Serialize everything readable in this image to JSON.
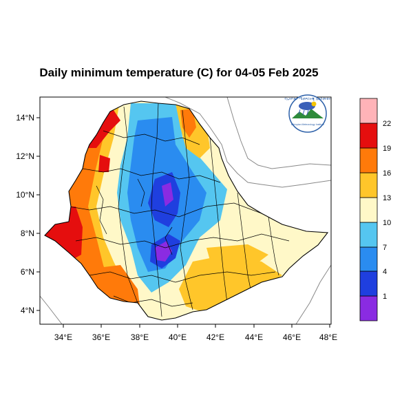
{
  "title": "Daily minimum temperature (C) for 04-05 Feb 2025",
  "map": {
    "x_ticks": [
      "34°E",
      "36°E",
      "38°E",
      "40°E",
      "42°E",
      "44°E",
      "46°E",
      "48°E"
    ],
    "y_ticks": [
      "14°N",
      "12°N",
      "10°N",
      "8°N",
      "6°N",
      "4°N"
    ]
  },
  "colorbar": {
    "levels": [
      "1",
      "4",
      "7",
      "10",
      "13",
      "16",
      "19",
      "22"
    ],
    "colors": [
      "#8a2be2",
      "#1f3fdf",
      "#2a8cf0",
      "#55c6f0",
      "#fff8c8",
      "#ffc62a",
      "#ff7a0a",
      "#e50e0e",
      "#ffb3b8"
    ]
  },
  "logo": {
    "text": "Ethiopian Meteorology Institute",
    "amharic": "የኢትዮጵያ ሜቲዎሮሎጂ ኢንስቲትዩት"
  }
}
